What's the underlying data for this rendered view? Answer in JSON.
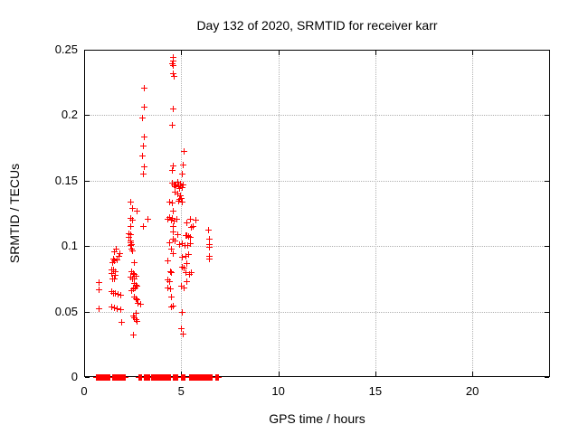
{
  "chart_data": {
    "type": "scatter",
    "title": "Day 132 of 2020, SRMTID for receiver karr",
    "xlabel": "GPS time / hours",
    "ylabel": "SRMTID / TECUs",
    "xlim": [
      0,
      24
    ],
    "ylim": [
      0,
      0.25
    ],
    "xticks": [
      {
        "v": 0,
        "label": "0"
      },
      {
        "v": 5,
        "label": "5"
      },
      {
        "v": 10,
        "label": "10"
      },
      {
        "v": 15,
        "label": "15"
      },
      {
        "v": 20,
        "label": "20"
      }
    ],
    "yticks": [
      {
        "v": 0,
        "label": "0"
      },
      {
        "v": 0.05,
        "label": "0.05"
      },
      {
        "v": 0.1,
        "label": "0.1"
      },
      {
        "v": 0.15,
        "label": "0.15"
      },
      {
        "v": 0.2,
        "label": "0.2"
      },
      {
        "v": 0.25,
        "label": "0.25"
      }
    ],
    "grid": true,
    "grid_color": "#b0b0b0",
    "legend": false,
    "marker": "plus",
    "marker_color": "#ff0000",
    "series": [
      {
        "name": "SRMTID detections",
        "points": [
          [
            0.75,
            0.0723
          ],
          [
            0.76,
            0.0663
          ],
          [
            0.79,
            0.052
          ],
          [
            1.46,
            0.0877
          ],
          [
            1.52,
            0.09
          ],
          [
            1.58,
            0.0884
          ],
          [
            1.65,
            0.0974
          ],
          [
            1.55,
            0.0958
          ],
          [
            1.84,
            0.0946
          ],
          [
            1.78,
            0.0923
          ],
          [
            1.7,
            0.0896
          ],
          [
            1.42,
            0.082
          ],
          [
            1.53,
            0.0815
          ],
          [
            1.6,
            0.0808
          ],
          [
            1.44,
            0.0789
          ],
          [
            1.62,
            0.078
          ],
          [
            1.45,
            0.075
          ],
          [
            1.56,
            0.0746
          ],
          [
            1.42,
            0.065
          ],
          [
            1.52,
            0.0642
          ],
          [
            1.63,
            0.0637
          ],
          [
            1.73,
            0.063
          ],
          [
            1.88,
            0.0624
          ],
          [
            1.42,
            0.0532
          ],
          [
            1.57,
            0.0525
          ],
          [
            1.7,
            0.052
          ],
          [
            1.88,
            0.0513
          ],
          [
            1.93,
            0.0416
          ],
          [
            2.38,
            0.1333
          ],
          [
            2.48,
            0.129
          ],
          [
            2.71,
            0.1268
          ],
          [
            2.42,
            0.1212
          ],
          [
            2.5,
            0.1195
          ],
          [
            2.39,
            0.1153
          ],
          [
            2.3,
            0.1096
          ],
          [
            2.39,
            0.1089
          ],
          [
            2.3,
            0.1066
          ],
          [
            2.39,
            0.1038
          ],
          [
            2.42,
            0.1026
          ],
          [
            2.45,
            0.1015
          ],
          [
            2.39,
            0.1003
          ],
          [
            2.45,
            0.0974
          ],
          [
            2.5,
            0.0965
          ],
          [
            2.58,
            0.0877
          ],
          [
            2.44,
            0.0808
          ],
          [
            2.52,
            0.0789
          ],
          [
            2.6,
            0.0785
          ],
          [
            2.66,
            0.0773
          ],
          [
            2.4,
            0.0761
          ],
          [
            2.5,
            0.075
          ],
          [
            2.58,
            0.0746
          ],
          [
            2.6,
            0.0716
          ],
          [
            2.66,
            0.0704
          ],
          [
            2.72,
            0.0693
          ],
          [
            2.64,
            0.0681
          ],
          [
            2.55,
            0.067
          ],
          [
            2.43,
            0.0658
          ],
          [
            2.6,
            0.0612
          ],
          [
            2.7,
            0.06
          ],
          [
            2.74,
            0.0589
          ],
          [
            2.77,
            0.0566
          ],
          [
            2.9,
            0.0554
          ],
          [
            2.66,
            0.0485
          ],
          [
            2.55,
            0.0463
          ],
          [
            2.6,
            0.0451
          ],
          [
            2.66,
            0.044
          ],
          [
            2.74,
            0.0428
          ],
          [
            2.55,
            0.0318
          ],
          [
            3.08,
            0.2208
          ],
          [
            3.1,
            0.2063
          ],
          [
            3.02,
            0.198
          ],
          [
            3.11,
            0.1837
          ],
          [
            3.05,
            0.1763
          ],
          [
            3.0,
            0.1687
          ],
          [
            3.09,
            0.1609
          ],
          [
            3.05,
            0.1552
          ],
          [
            3.28,
            0.1204
          ],
          [
            3.04,
            0.1149
          ],
          [
            4.6,
            0.244
          ],
          [
            4.57,
            0.2415
          ],
          [
            4.54,
            0.239
          ],
          [
            4.58,
            0.238
          ],
          [
            4.59,
            0.232
          ],
          [
            4.62,
            0.2295
          ],
          [
            4.61,
            0.2051
          ],
          [
            4.56,
            0.192
          ],
          [
            5.15,
            0.1724
          ],
          [
            5.12,
            0.1618
          ],
          [
            4.6,
            0.1614
          ],
          [
            5.07,
            0.1551
          ],
          [
            5.04,
            0.1549
          ],
          [
            4.53,
            0.158
          ],
          [
            4.55,
            0.148
          ],
          [
            4.62,
            0.147
          ],
          [
            4.68,
            0.1455
          ],
          [
            4.74,
            0.1468
          ],
          [
            4.8,
            0.1485
          ],
          [
            4.86,
            0.146
          ],
          [
            4.92,
            0.144
          ],
          [
            4.98,
            0.1475
          ],
          [
            5.04,
            0.145
          ],
          [
            5.1,
            0.1465
          ],
          [
            4.7,
            0.1415
          ],
          [
            4.82,
            0.14
          ],
          [
            4.94,
            0.1385
          ],
          [
            5.02,
            0.1365
          ],
          [
            4.88,
            0.1345
          ],
          [
            5.06,
            0.1338
          ],
          [
            4.9,
            0.1356
          ],
          [
            4.42,
            0.1333
          ],
          [
            4.53,
            0.1326
          ],
          [
            4.6,
            0.1268
          ],
          [
            4.29,
            0.1204
          ],
          [
            4.53,
            0.1212
          ],
          [
            4.76,
            0.1204
          ],
          [
            4.4,
            0.1222
          ],
          [
            4.48,
            0.1195
          ],
          [
            4.65,
            0.1188
          ],
          [
            4.6,
            0.1153
          ],
          [
            4.6,
            0.1107
          ],
          [
            4.83,
            0.1089
          ],
          [
            4.57,
            0.105
          ],
          [
            4.67,
            0.1038
          ],
          [
            4.42,
            0.1026
          ],
          [
            4.91,
            0.1015
          ],
          [
            5.06,
            0.102
          ],
          [
            5.18,
            0.1003
          ],
          [
            4.48,
            0.0974
          ],
          [
            4.6,
            0.0946
          ],
          [
            5.07,
            0.0912
          ],
          [
            5.22,
            0.0923
          ],
          [
            4.29,
            0.0889
          ],
          [
            4.44,
            0.0808
          ],
          [
            4.52,
            0.0796
          ],
          [
            4.29,
            0.0739
          ],
          [
            4.41,
            0.0727
          ],
          [
            4.32,
            0.0681
          ],
          [
            4.44,
            0.067
          ],
          [
            4.52,
            0.0612
          ],
          [
            4.6,
            0.0543
          ],
          [
            4.48,
            0.0532
          ],
          [
            5.07,
            0.0842
          ],
          [
            5.14,
            0.0831
          ],
          [
            5.22,
            0.0801
          ],
          [
            5.45,
            0.0785
          ],
          [
            5.03,
            0.0693
          ],
          [
            5.14,
            0.0681
          ],
          [
            5.07,
            0.0497
          ],
          [
            5.0,
            0.037
          ],
          [
            5.1,
            0.0325
          ],
          [
            5.46,
            0.1204
          ],
          [
            5.77,
            0.12
          ],
          [
            5.62,
            0.1153
          ],
          [
            5.3,
            0.118
          ],
          [
            5.54,
            0.114
          ],
          [
            5.31,
            0.108
          ],
          [
            5.46,
            0.1066
          ],
          [
            5.38,
            0.1073
          ],
          [
            5.25,
            0.1079
          ],
          [
            5.35,
            0.1003
          ],
          [
            5.46,
            0.102
          ],
          [
            5.38,
            0.0934
          ],
          [
            5.31,
            0.0865
          ],
          [
            5.51,
            0.0796
          ],
          [
            5.31,
            0.0727
          ],
          [
            6.4,
            0.1119
          ],
          [
            6.47,
            0.105
          ],
          [
            6.44,
            0.1015
          ],
          [
            6.47,
            0.0992
          ],
          [
            6.44,
            0.0923
          ],
          [
            6.45,
            0.09
          ]
        ]
      },
      {
        "name": "zero-value baseline markers (y=0)",
        "value": 0,
        "segments": [
          [
            0.61,
            1.13
          ],
          [
            1.21,
            1.36
          ],
          [
            1.46,
            2.14
          ],
          [
            2.81,
            2.98
          ],
          [
            3.08,
            3.39
          ],
          [
            3.48,
            4.47
          ],
          [
            4.57,
            4.83
          ],
          [
            5.03,
            5.22
          ],
          [
            5.45,
            6.62
          ],
          [
            6.78,
            6.9
          ]
        ],
        "step": 0.04
      }
    ]
  }
}
